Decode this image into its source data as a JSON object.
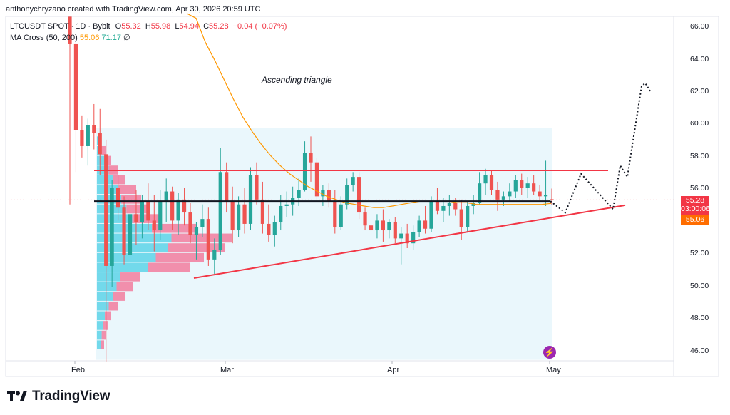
{
  "header": {
    "credit": "anthonychryzano created with TradingView.com, Apr 30, 2026 20:59 UTC",
    "symbol_line": "LTCUSDT SPOT · 1D · Bybit",
    "ohlc": {
      "o_label": "O",
      "o": "55.32",
      "h_label": "H",
      "h": "55.98",
      "l_label": "L",
      "l": "54.94",
      "c_label": "C",
      "c": "55.28",
      "change": "−0.04 (−0.07%)"
    },
    "indicator": {
      "name": "MA Cross (50, 200)",
      "fast": "55.06",
      "slow": "71.17",
      "extra": "∅"
    }
  },
  "annotation": "Ascending triangle",
  "price_axis": {
    "ticks": [
      "66.00",
      "64.00",
      "62.00",
      "60.00",
      "58.00",
      "56.00",
      "54.00",
      "52.00",
      "50.00",
      "48.00",
      "46.00"
    ],
    "last_price": "55.28",
    "countdown": "03:00:06",
    "ma_price": "55.06"
  },
  "time_axis": {
    "labels": [
      "Feb",
      "Mar",
      "Apr",
      "May"
    ]
  },
  "brand": {
    "name": "TradingView"
  },
  "colors": {
    "up": "#26a69a",
    "down": "#ef5350",
    "ma_fast": "#ff9800",
    "trendline": "#f23645",
    "support": "#131722",
    "vp_region": "#e3f4fb",
    "vp_up": "#5dd3e8",
    "vp_down": "#f27d9e",
    "last_price_badge": "#f23645",
    "ma_badge": "#ff6d00"
  },
  "chart_data": {
    "type": "candlestick",
    "interval": "1D",
    "y_range": [
      45.5,
      66.8
    ],
    "candles": [
      {
        "o": 66.6,
        "h": 66.6,
        "l": 55.0,
        "c": 64.9
      },
      {
        "o": 64.9,
        "h": 65.5,
        "l": 57.0,
        "c": 59.6
      },
      {
        "o": 59.6,
        "h": 60.5,
        "l": 57.9,
        "c": 58.6
      },
      {
        "o": 58.6,
        "h": 60.3,
        "l": 57.4,
        "c": 59.9
      },
      {
        "o": 59.9,
        "h": 61.2,
        "l": 58.4,
        "c": 59.4
      },
      {
        "o": 59.4,
        "h": 60.9,
        "l": 56.8,
        "c": 58.1
      },
      {
        "o": 58.1,
        "h": 59.0,
        "l": 45.3,
        "c": 51.2
      },
      {
        "o": 51.2,
        "h": 56.5,
        "l": 49.9,
        "c": 56.0
      },
      {
        "o": 56.0,
        "h": 56.8,
        "l": 54.0,
        "c": 54.8
      },
      {
        "o": 54.8,
        "h": 55.5,
        "l": 51.3,
        "c": 51.9
      },
      {
        "o": 51.9,
        "h": 55.3,
        "l": 51.5,
        "c": 54.4
      },
      {
        "o": 54.4,
        "h": 55.9,
        "l": 52.5,
        "c": 53.9
      },
      {
        "o": 53.9,
        "h": 55.6,
        "l": 52.9,
        "c": 55.2
      },
      {
        "o": 55.2,
        "h": 56.3,
        "l": 53.4,
        "c": 54.0
      },
      {
        "o": 54.0,
        "h": 55.6,
        "l": 52.1,
        "c": 53.4
      },
      {
        "o": 53.4,
        "h": 55.9,
        "l": 52.8,
        "c": 55.2
      },
      {
        "o": 55.2,
        "h": 56.6,
        "l": 53.9,
        "c": 55.8
      },
      {
        "o": 55.8,
        "h": 56.1,
        "l": 53.4,
        "c": 54.0
      },
      {
        "o": 54.0,
        "h": 55.7,
        "l": 53.1,
        "c": 55.3
      },
      {
        "o": 55.3,
        "h": 56.0,
        "l": 53.7,
        "c": 54.5
      },
      {
        "o": 54.5,
        "h": 55.1,
        "l": 52.6,
        "c": 53.1
      },
      {
        "o": 53.1,
        "h": 53.9,
        "l": 51.6,
        "c": 53.6
      },
      {
        "o": 53.6,
        "h": 55.0,
        "l": 53.0,
        "c": 54.1
      },
      {
        "o": 54.1,
        "h": 54.8,
        "l": 51.2,
        "c": 51.6
      },
      {
        "o": 51.6,
        "h": 52.9,
        "l": 50.7,
        "c": 52.2
      },
      {
        "o": 52.2,
        "h": 58.5,
        "l": 51.9,
        "c": 57.0
      },
      {
        "o": 57.0,
        "h": 57.6,
        "l": 54.5,
        "c": 55.2
      },
      {
        "o": 55.2,
        "h": 56.1,
        "l": 52.6,
        "c": 53.4
      },
      {
        "o": 53.4,
        "h": 55.5,
        "l": 53.0,
        "c": 55.0
      },
      {
        "o": 55.0,
        "h": 56.0,
        "l": 53.2,
        "c": 53.8
      },
      {
        "o": 53.8,
        "h": 57.3,
        "l": 53.4,
        "c": 56.8
      },
      {
        "o": 56.8,
        "h": 57.6,
        "l": 55.0,
        "c": 55.3
      },
      {
        "o": 55.3,
        "h": 56.4,
        "l": 53.2,
        "c": 53.8
      },
      {
        "o": 53.8,
        "h": 55.0,
        "l": 52.7,
        "c": 53.1
      },
      {
        "o": 53.1,
        "h": 54.3,
        "l": 52.4,
        "c": 53.9
      },
      {
        "o": 53.9,
        "h": 55.6,
        "l": 53.4,
        "c": 54.9
      },
      {
        "o": 54.9,
        "h": 55.8,
        "l": 54.2,
        "c": 55.0
      },
      {
        "o": 55.0,
        "h": 56.1,
        "l": 54.3,
        "c": 55.4
      },
      {
        "o": 55.4,
        "h": 56.6,
        "l": 54.9,
        "c": 55.9
      },
      {
        "o": 55.9,
        "h": 58.9,
        "l": 55.8,
        "c": 58.2
      },
      {
        "o": 58.2,
        "h": 59.2,
        "l": 56.4,
        "c": 57.6
      },
      {
        "o": 57.6,
        "h": 57.9,
        "l": 55.2,
        "c": 55.5
      },
      {
        "o": 55.5,
        "h": 56.2,
        "l": 54.9,
        "c": 55.9
      },
      {
        "o": 55.9,
        "h": 56.3,
        "l": 54.8,
        "c": 55.2
      },
      {
        "o": 55.2,
        "h": 55.9,
        "l": 53.2,
        "c": 53.6
      },
      {
        "o": 53.6,
        "h": 55.5,
        "l": 53.4,
        "c": 55.0
      },
      {
        "o": 55.0,
        "h": 56.6,
        "l": 54.7,
        "c": 56.2
      },
      {
        "o": 56.2,
        "h": 57.0,
        "l": 55.8,
        "c": 56.7
      },
      {
        "o": 56.7,
        "h": 57.0,
        "l": 54.1,
        "c": 54.5
      },
      {
        "o": 54.5,
        "h": 54.8,
        "l": 53.4,
        "c": 53.7
      },
      {
        "o": 53.7,
        "h": 54.1,
        "l": 53.1,
        "c": 53.4
      },
      {
        "o": 53.4,
        "h": 54.4,
        "l": 52.9,
        "c": 54.0
      },
      {
        "o": 54.0,
        "h": 54.7,
        "l": 52.7,
        "c": 53.4
      },
      {
        "o": 53.4,
        "h": 54.1,
        "l": 52.9,
        "c": 53.9
      },
      {
        "o": 53.9,
        "h": 54.2,
        "l": 52.6,
        "c": 52.9
      },
      {
        "o": 52.9,
        "h": 53.6,
        "l": 51.3,
        "c": 53.2
      },
      {
        "o": 53.2,
        "h": 53.8,
        "l": 52.3,
        "c": 52.6
      },
      {
        "o": 52.6,
        "h": 53.7,
        "l": 52.2,
        "c": 53.3
      },
      {
        "o": 53.3,
        "h": 54.3,
        "l": 53.0,
        "c": 54.0
      },
      {
        "o": 54.0,
        "h": 54.9,
        "l": 53.2,
        "c": 53.5
      },
      {
        "o": 53.5,
        "h": 55.5,
        "l": 53.3,
        "c": 55.2
      },
      {
        "o": 55.2,
        "h": 56.0,
        "l": 54.4,
        "c": 54.6
      },
      {
        "o": 54.6,
        "h": 55.4,
        "l": 53.9,
        "c": 54.9
      },
      {
        "o": 54.9,
        "h": 55.6,
        "l": 54.3,
        "c": 55.1
      },
      {
        "o": 55.1,
        "h": 55.4,
        "l": 54.3,
        "c": 54.7
      },
      {
        "o": 54.7,
        "h": 55.3,
        "l": 52.8,
        "c": 53.6
      },
      {
        "o": 53.6,
        "h": 55.2,
        "l": 53.3,
        "c": 54.9
      },
      {
        "o": 54.9,
        "h": 55.6,
        "l": 54.4,
        "c": 55.1
      },
      {
        "o": 55.1,
        "h": 57.0,
        "l": 55.0,
        "c": 56.3
      },
      {
        "o": 56.3,
        "h": 57.2,
        "l": 55.6,
        "c": 56.8
      },
      {
        "o": 56.8,
        "h": 57.1,
        "l": 55.6,
        "c": 55.9
      },
      {
        "o": 55.9,
        "h": 56.4,
        "l": 54.6,
        "c": 55.3
      },
      {
        "o": 55.3,
        "h": 55.8,
        "l": 54.9,
        "c": 55.5
      },
      {
        "o": 55.5,
        "h": 56.3,
        "l": 55.2,
        "c": 55.8
      },
      {
        "o": 55.8,
        "h": 56.8,
        "l": 55.4,
        "c": 56.5
      },
      {
        "o": 56.5,
        "h": 56.9,
        "l": 55.6,
        "c": 56.0
      },
      {
        "o": 56.0,
        "h": 56.7,
        "l": 55.4,
        "c": 56.3
      },
      {
        "o": 56.3,
        "h": 56.8,
        "l": 55.6,
        "c": 55.8
      },
      {
        "o": 55.8,
        "h": 56.2,
        "l": 55.3,
        "c": 55.5
      },
      {
        "o": 55.5,
        "h": 57.7,
        "l": 54.9,
        "c": 55.6
      },
      {
        "o": 55.32,
        "h": 55.98,
        "l": 54.94,
        "c": 55.28
      }
    ],
    "ma_fast": [
      66.8,
      66.5,
      65.0,
      63.9,
      62.7,
      61.5,
      60.4,
      59.5,
      58.7,
      58.0,
      57.4,
      56.9,
      56.5,
      56.1,
      55.8,
      55.5,
      55.3,
      55.1,
      55.0,
      54.9,
      54.8,
      54.8,
      54.9,
      55.0,
      55.1,
      55.2,
      55.2,
      55.2,
      55.2,
      55.1,
      55.1,
      55.0,
      55.0,
      55.0,
      55.0,
      55.0,
      55.0,
      55.0,
      55.0,
      55.06
    ],
    "resistance": 57.1,
    "support": 55.2,
    "rising_trendline": [
      [
        50.5
      ],
      [
        55.0
      ]
    ]
  }
}
